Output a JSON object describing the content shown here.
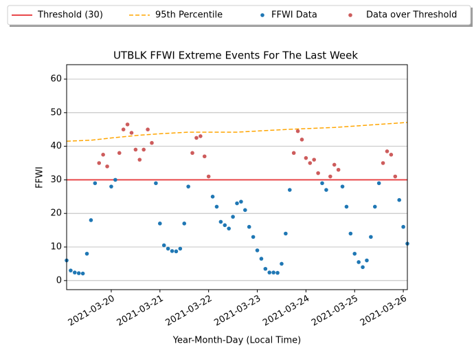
{
  "chart_data": {
    "type": "scatter",
    "title": "UTBLK FFWI Extreme Events For The Last Week",
    "x_label": "Year-Month-Day (Local Time)",
    "y_label": "FFWI",
    "x": [
      "2021-03-19 02:00",
      "2021-03-19 04:00",
      "2021-03-19 06:00",
      "2021-03-19 08:00",
      "2021-03-19 10:00",
      "2021-03-19 12:00",
      "2021-03-19 14:00",
      "2021-03-19 16:00",
      "2021-03-19 18:00",
      "2021-03-19 20:00",
      "2021-03-19 22:00",
      "2021-03-20 00:00",
      "2021-03-20 02:00",
      "2021-03-20 04:00",
      "2021-03-20 06:00",
      "2021-03-20 08:00",
      "2021-03-20 10:00",
      "2021-03-20 12:00",
      "2021-03-20 14:00",
      "2021-03-20 16:00",
      "2021-03-20 18:00",
      "2021-03-20 20:00",
      "2021-03-20 22:00",
      "2021-03-21 00:00",
      "2021-03-21 02:00",
      "2021-03-21 04:00",
      "2021-03-21 06:00",
      "2021-03-21 08:00",
      "2021-03-21 10:00",
      "2021-03-21 12:00",
      "2021-03-21 14:00",
      "2021-03-21 16:00",
      "2021-03-21 18:00",
      "2021-03-21 20:00",
      "2021-03-21 22:00",
      "2021-03-22 00:00",
      "2021-03-22 02:00",
      "2021-03-22 04:00",
      "2021-03-22 06:00",
      "2021-03-22 08:00",
      "2021-03-22 10:00",
      "2021-03-22 12:00",
      "2021-03-22 14:00",
      "2021-03-22 16:00",
      "2021-03-22 18:00",
      "2021-03-22 20:00",
      "2021-03-22 22:00",
      "2021-03-23 00:00",
      "2021-03-23 02:00",
      "2021-03-23 04:00",
      "2021-03-23 06:00",
      "2021-03-23 08:00",
      "2021-03-23 10:00",
      "2021-03-23 12:00",
      "2021-03-23 14:00",
      "2021-03-23 16:00",
      "2021-03-23 18:00",
      "2021-03-23 20:00",
      "2021-03-23 22:00",
      "2021-03-24 00:00",
      "2021-03-24 02:00",
      "2021-03-24 04:00",
      "2021-03-24 06:00",
      "2021-03-24 08:00",
      "2021-03-24 10:00",
      "2021-03-24 12:00",
      "2021-03-24 14:00",
      "2021-03-24 16:00",
      "2021-03-24 18:00",
      "2021-03-24 20:00",
      "2021-03-24 22:00",
      "2021-03-25 00:00",
      "2021-03-25 02:00",
      "2021-03-25 04:00",
      "2021-03-25 06:00",
      "2021-03-25 08:00",
      "2021-03-25 10:00",
      "2021-03-25 12:00",
      "2021-03-25 14:00",
      "2021-03-25 16:00",
      "2021-03-25 18:00",
      "2021-03-25 20:00",
      "2021-03-25 22:00",
      "2021-03-26 00:00",
      "2021-03-26 02:00"
    ],
    "series": [
      {
        "name": "Threshold (30)",
        "color": "#e8474a",
        "style": "line",
        "value": 30
      },
      {
        "name": "95th Percentile",
        "color": "#ffa500",
        "style": "dashed",
        "x": [
          "2021-03-19 02:00",
          "2021-03-19 14:00",
          "2021-03-20 02:00",
          "2021-03-20 14:00",
          "2021-03-21 02:00",
          "2021-03-21 14:00",
          "2021-03-22 02:00",
          "2021-03-22 14:00",
          "2021-03-23 02:00",
          "2021-03-23 14:00",
          "2021-03-24 02:00",
          "2021-03-24 14:00",
          "2021-03-25 02:00",
          "2021-03-25 14:00",
          "2021-03-26 02:00"
        ],
        "values": [
          41.5,
          41.8,
          42.6,
          43.3,
          43.8,
          44.2,
          44.2,
          44.2,
          44.6,
          45.0,
          45.3,
          45.6,
          46.1,
          46.6,
          47.1
        ]
      },
      {
        "name": "FFWI Data",
        "color": "#1f77b4",
        "style": "dot",
        "values": [
          6,
          3,
          2.4,
          2.2,
          2.1,
          8,
          18,
          29,
          null,
          null,
          null,
          28,
          30,
          null,
          null,
          null,
          null,
          null,
          null,
          null,
          null,
          null,
          29,
          17,
          10.5,
          9.5,
          8.8,
          8.7,
          9.5,
          17,
          28,
          null,
          null,
          null,
          null,
          null,
          25,
          22,
          17.5,
          16.5,
          15.5,
          19,
          23,
          23.5,
          21,
          16,
          13,
          9,
          6.5,
          3.5,
          2.4,
          2.4,
          2.3,
          5,
          14,
          27,
          null,
          null,
          null,
          null,
          null,
          null,
          null,
          29,
          27,
          null,
          null,
          null,
          28,
          22,
          14,
          8,
          5.5,
          4,
          6,
          13,
          22,
          29,
          null,
          null,
          null,
          null,
          24,
          16,
          11
        ]
      },
      {
        "name": "Data over Threshold",
        "color": "#cd5c5c",
        "style": "dot",
        "values": [
          null,
          null,
          null,
          null,
          null,
          null,
          null,
          null,
          35,
          37.5,
          34,
          null,
          null,
          38,
          45,
          46.5,
          44,
          39,
          36,
          39,
          45,
          41,
          null,
          null,
          null,
          null,
          null,
          null,
          null,
          null,
          null,
          38,
          42.5,
          43,
          37,
          31,
          null,
          null,
          null,
          null,
          null,
          null,
          null,
          null,
          null,
          null,
          null,
          null,
          null,
          null,
          null,
          null,
          null,
          null,
          null,
          null,
          38,
          44.5,
          42,
          36.5,
          35,
          36,
          32,
          null,
          null,
          31,
          34.5,
          33,
          null,
          null,
          null,
          null,
          null,
          null,
          null,
          null,
          null,
          null,
          35,
          38.5,
          37.5,
          31,
          null,
          null,
          null
        ]
      }
    ],
    "xlim": [
      "2021-03-19 02:00",
      "2021-03-26 02:00"
    ],
    "xticks": [
      "2021-03-20",
      "2021-03-21",
      "2021-03-22",
      "2021-03-23",
      "2021-03-24",
      "2021-03-25",
      "2021-03-26"
    ],
    "ylim": [
      -2.7,
      64.3
    ],
    "yticks": [
      0,
      10,
      20,
      30,
      40,
      50,
      60
    ],
    "grid": "y",
    "legend": "top"
  }
}
